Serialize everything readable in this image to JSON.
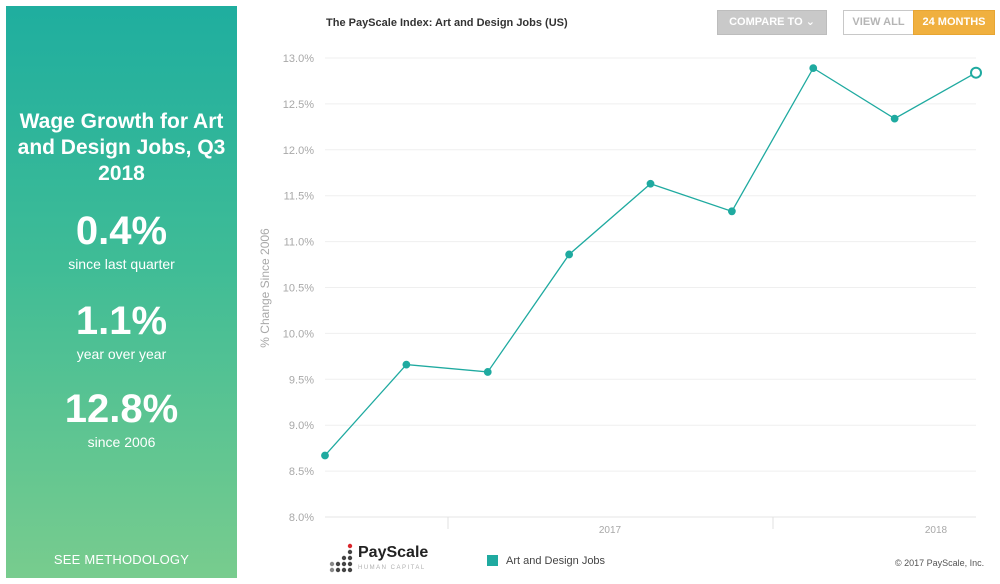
{
  "panel": {
    "title": "Wage Growth for Art and Design Jobs, Q3 2018",
    "stats": [
      {
        "value": "0.4%",
        "label": "since last quarter"
      },
      {
        "value": "1.1%",
        "label": "year over year"
      },
      {
        "value": "12.8%",
        "label": "since 2006"
      }
    ],
    "methodology": "SEE METHODOLOGY"
  },
  "controls": {
    "compare_label": "COMPARE TO",
    "view_all_label": "VIEW ALL",
    "months_label": "24 MONTHS"
  },
  "footer": {
    "logo_name": "PayScale",
    "logo_sub": "HUMAN CAPITAL",
    "copyright": "© 2017 PayScale, Inc."
  },
  "colors": {
    "accent": "#1faaa0",
    "button_active": "#f0b03f",
    "button_compare": "#c9c9c9"
  },
  "chart_data": {
    "type": "line",
    "title": "The PayScale Index: Art and Design Jobs (US)",
    "ylabel": "% Change Since 2006",
    "xlabel": "",
    "ylim": [
      8.0,
      13.0
    ],
    "y_ticks": [
      "8.0%",
      "8.5%",
      "9.0%",
      "9.5%",
      "10.0%",
      "10.5%",
      "11.0%",
      "11.5%",
      "12.0%",
      "12.5%",
      "13.0%"
    ],
    "x_tick_labels": [
      "2017",
      "2018"
    ],
    "grid": true,
    "legend": "bottom",
    "series": [
      {
        "name": "Art and Design Jobs",
        "values": [
          8.67,
          9.66,
          9.58,
          10.86,
          11.63,
          11.33,
          12.89,
          12.34,
          12.84
        ]
      }
    ]
  }
}
